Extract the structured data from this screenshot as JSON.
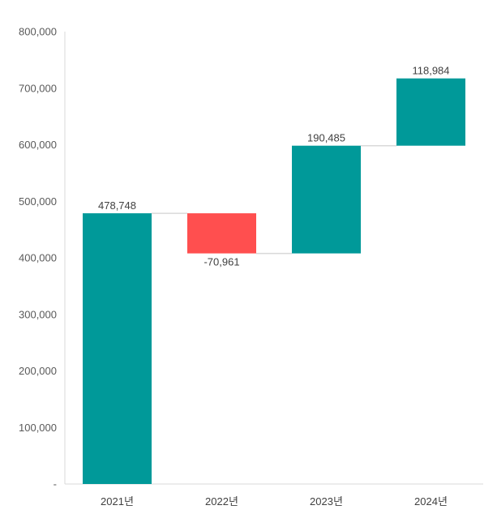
{
  "chart_data": {
    "type": "waterfall",
    "title": "",
    "xlabel": "",
    "ylabel": "",
    "categories": [
      "2021년",
      "2022년",
      "2023년",
      "2024년"
    ],
    "values": [
      478748,
      -70961,
      190485,
      118984
    ],
    "labels": [
      "478,748",
      "-70,961",
      "190,485",
      "118,984"
    ],
    "ylim": [
      0,
      800000
    ],
    "yticks": [
      0,
      100000,
      200000,
      300000,
      400000,
      500000,
      600000,
      700000,
      800000
    ],
    "ytick_labels": [
      "-",
      "100,000",
      "200,000",
      "300,000",
      "400,000",
      "500,000",
      "600,000",
      "700,000",
      "800,000"
    ],
    "grid": false,
    "legend": "none",
    "colors": {
      "increase": "#009999",
      "decrease": "#FF4F4F",
      "connector": "#D9D9D9",
      "axis": "#D9D9D9"
    }
  }
}
